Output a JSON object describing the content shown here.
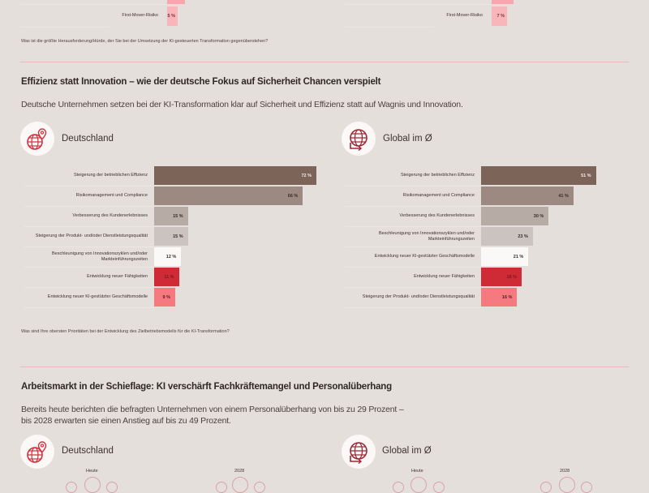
{
  "top_section": {
    "left": {
      "label": "First-Mover-Risiko",
      "value": "5 %",
      "percent": 5
    },
    "right": {
      "label": "First-Mover-Risiko",
      "value": "7 %",
      "percent": 7
    },
    "question": "Was ist die größte Herausforderung/Hürde, der Sie bei der Umsetzung der KI-gesteuerten Transformation gegenüberstehen?"
  },
  "section2": {
    "title": "Effizienz statt Innovation – wie der deutsche Fokus auf Sicherheit Chancen verspielt",
    "text": "Deutsche Unternehmen setzen bei der KI-Transformation klar auf Sicherheit und Effizienz statt auf Wagnis und Innovation.",
    "question": "Was sind Ihre obersten Prioritäten bei der Entwicklung des Zielbetriebsmodells für die KI-Transformation?"
  },
  "section3": {
    "title": "Arbeitsmarkt in der Schieflage: KI verschärft Fachkräftemangel und Personalüberhang",
    "text_line1": "Bereits heute berichten die befragten Unternehmen von einem Personalüberhang von bis zu 29 Prozent –",
    "text_line2": "bis 2028 erwarten sie einen Anstieg auf bis zu 49 Prozent.",
    "left": {
      "region": "Deutschland",
      "label_today": "Heute",
      "label_future": "2028"
    },
    "right": {
      "region": "Global im Ø",
      "label_today": "Heute",
      "label_future": "2028"
    }
  },
  "icons": {
    "germany": "globe-pin-icon",
    "global": "globe-arrows-icon"
  },
  "colors": {
    "background": "#e5dfdc",
    "accent": "#d0323e",
    "bar_shades": [
      "#7d6459",
      "#9c8981",
      "#b7aba6",
      "#cbc3c0",
      "#fbf9f8",
      "#cf2b37",
      "#f47a7f"
    ]
  },
  "chart_data": [
    {
      "type": "bar",
      "orientation": "horizontal",
      "title": "Deutschland",
      "categories": [
        "Steigerung der betrieblichen Effizienz",
        "Risikomanagement und Compliance",
        "Verbesserung des Kundenerlebnisses",
        "Steigerung der Produkt- und/oder Dienstleistungsqualität",
        "Beschleunigung von Innovationszyklen und/oder Markteinführungszeiten",
        "Entwicklung neuer Fähigkeiten",
        "Entwicklung neuer KI-gestützter Geschäftsmodelle"
      ],
      "values": [
        72,
        66,
        15,
        15,
        12,
        11,
        9
      ],
      "value_labels": [
        "72 %",
        "66 %",
        "15 %",
        "15 %",
        "12 %",
        "11 %",
        "9 %"
      ],
      "unit": "%",
      "xlim": [
        0,
        72
      ]
    },
    {
      "type": "bar",
      "orientation": "horizontal",
      "title": "Global im Ø",
      "categories": [
        "Steigerung der betrieblichen Effizienz",
        "Risikomanagement und Compliance",
        "Verbesserung des Kundenerlebnisses",
        "Beschleunigung von Innovationszyklen und/oder Markteinführungszeiten",
        "Entwicklung neuer KI-gestützter Geschäftsmodelle",
        "Entwicklung neuer Fähigkeiten",
        "Steigerung der Produkt- und/oder Dienstleistungsqualität"
      ],
      "values": [
        51,
        41,
        30,
        23,
        21,
        18,
        16
      ],
      "value_labels": [
        "51 %",
        "41 %",
        "30 %",
        "23 %",
        "21 %",
        "18 %",
        "16 %"
      ],
      "unit": "%",
      "xlim": [
        0,
        72
      ]
    }
  ]
}
